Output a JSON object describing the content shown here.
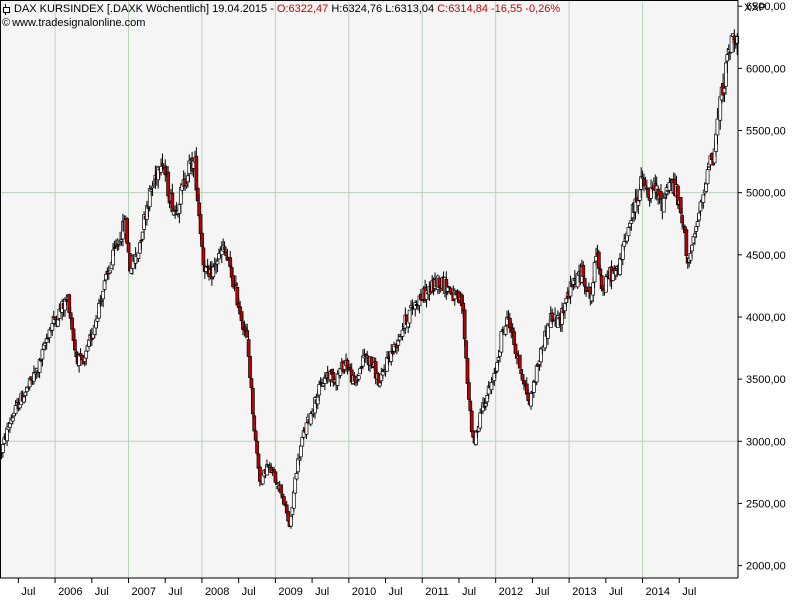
{
  "header": {
    "name": "DAX KURSINDEX [.DAXK  Wöchentlich]",
    "date": "19.04.2015",
    "sep": " - ",
    "open": "O:6322,47",
    "high": "H:6324,76",
    "low": "L:6313,04",
    "close": "C:6314,84",
    "change": "-16,55",
    "change_pct": "-0,26%",
    "copyright_symbol": "©",
    "website": "www.tradesignalonline.com"
  },
  "y_unit": "XXP",
  "colors": {
    "background": "#f5f5f5",
    "grid": "#b9d2b9",
    "candle_up": "#ffffff",
    "candle_down": "#c00000",
    "candle_outline": "#000000",
    "header_red": "#d40000"
  },
  "chart_data": {
    "type": "candlestick",
    "title": "DAX KURSINDEX [.DAXK  Wöchentlich]",
    "frequency": "weekly",
    "ylim": [
      1900,
      6550
    ],
    "y_ticks": [
      2000,
      2500,
      3000,
      3500,
      4000,
      4500,
      5000,
      5500,
      6000,
      6500
    ],
    "y_tick_labels": [
      "2000,00",
      "2500,00",
      "3000,00",
      "3500,00",
      "4000,00",
      "4500,00",
      "5000,00",
      "5500,00",
      "6000,00",
      "6500,00"
    ],
    "x_range": [
      2005.25,
      2015.3
    ],
    "x_ticks": [
      {
        "label": "Jul",
        "x": 2005.5
      },
      {
        "label": "2006",
        "x": 2006.0
      },
      {
        "label": "Jul",
        "x": 2006.5
      },
      {
        "label": "2007",
        "x": 2007.0
      },
      {
        "label": "Jul",
        "x": 2007.5
      },
      {
        "label": "2008",
        "x": 2008.0
      },
      {
        "label": "Jul",
        "x": 2008.5
      },
      {
        "label": "2009",
        "x": 2009.0
      },
      {
        "label": "Jul",
        "x": 2009.5
      },
      {
        "label": "2010",
        "x": 2010.0
      },
      {
        "label": "Jul",
        "x": 2010.5
      },
      {
        "label": "2011",
        "x": 2011.0
      },
      {
        "label": "Jul",
        "x": 2011.5
      },
      {
        "label": "2012",
        "x": 2012.0
      },
      {
        "label": "Jul",
        "x": 2012.5
      },
      {
        "label": "2013",
        "x": 2013.0
      },
      {
        "label": "Jul",
        "x": 2013.5
      },
      {
        "label": "2014",
        "x": 2014.0
      },
      {
        "label": "Jul",
        "x": 2014.5
      }
    ],
    "grid_x": [
      2006.0,
      2007.0,
      2008.0,
      2009.0,
      2010.0,
      2011.0,
      2012.0,
      2013.0,
      2014.0
    ],
    "grid_y": [
      3000,
      5000
    ],
    "price_path": [
      [
        2005.27,
        2920
      ],
      [
        2005.38,
        3150
      ],
      [
        2005.5,
        3300
      ],
      [
        2005.62,
        3420
      ],
      [
        2005.78,
        3600
      ],
      [
        2005.92,
        3900
      ],
      [
        2006.02,
        4000
      ],
      [
        2006.12,
        4100
      ],
      [
        2006.18,
        4150
      ],
      [
        2006.28,
        3700
      ],
      [
        2006.38,
        3600
      ],
      [
        2006.5,
        3850
      ],
      [
        2006.62,
        4150
      ],
      [
        2006.75,
        4400
      ],
      [
        2006.88,
        4650
      ],
      [
        2006.96,
        4750
      ],
      [
        2007.02,
        4400
      ],
      [
        2007.12,
        4500
      ],
      [
        2007.25,
        4900
      ],
      [
        2007.35,
        5100
      ],
      [
        2007.45,
        5300
      ],
      [
        2007.55,
        5000
      ],
      [
        2007.63,
        4850
      ],
      [
        2007.72,
        5000
      ],
      [
        2007.82,
        5200
      ],
      [
        2007.9,
        5250
      ],
      [
        2007.96,
        4850
      ],
      [
        2008.02,
        4450
      ],
      [
        2008.1,
        4300
      ],
      [
        2008.2,
        4450
      ],
      [
        2008.3,
        4550
      ],
      [
        2008.42,
        4300
      ],
      [
        2008.5,
        4100
      ],
      [
        2008.62,
        3800
      ],
      [
        2008.72,
        3050
      ],
      [
        2008.8,
        2650
      ],
      [
        2008.88,
        2800
      ],
      [
        2008.96,
        2750
      ],
      [
        2009.08,
        2600
      ],
      [
        2009.2,
        2300
      ],
      [
        2009.28,
        2750
      ],
      [
        2009.38,
        3050
      ],
      [
        2009.5,
        3250
      ],
      [
        2009.62,
        3450
      ],
      [
        2009.72,
        3550
      ],
      [
        2009.82,
        3500
      ],
      [
        2009.96,
        3650
      ],
      [
        2010.08,
        3450
      ],
      [
        2010.22,
        3700
      ],
      [
        2010.34,
        3600
      ],
      [
        2010.42,
        3450
      ],
      [
        2010.52,
        3650
      ],
      [
        2010.62,
        3750
      ],
      [
        2010.72,
        3900
      ],
      [
        2010.84,
        4050
      ],
      [
        2010.96,
        4150
      ],
      [
        2011.08,
        4200
      ],
      [
        2011.22,
        4300
      ],
      [
        2011.34,
        4250
      ],
      [
        2011.45,
        4150
      ],
      [
        2011.55,
        4100
      ],
      [
        2011.62,
        3450
      ],
      [
        2011.7,
        2950
      ],
      [
        2011.8,
        3250
      ],
      [
        2011.9,
        3400
      ],
      [
        2011.98,
        3500
      ],
      [
        2012.08,
        3850
      ],
      [
        2012.18,
        4000
      ],
      [
        2012.28,
        3700
      ],
      [
        2012.38,
        3500
      ],
      [
        2012.46,
        3300
      ],
      [
        2012.55,
        3550
      ],
      [
        2012.65,
        3800
      ],
      [
        2012.75,
        4000
      ],
      [
        2012.86,
        3950
      ],
      [
        2012.96,
        4150
      ],
      [
        2013.08,
        4300
      ],
      [
        2013.18,
        4350
      ],
      [
        2013.3,
        4150
      ],
      [
        2013.38,
        4550
      ],
      [
        2013.46,
        4200
      ],
      [
        2013.55,
        4350
      ],
      [
        2013.65,
        4350
      ],
      [
        2013.72,
        4500
      ],
      [
        2013.82,
        4750
      ],
      [
        2013.92,
        4950
      ],
      [
        2014.0,
        5100
      ],
      [
        2014.08,
        4950
      ],
      [
        2014.16,
        5050
      ],
      [
        2014.26,
        4900
      ],
      [
        2014.36,
        5100
      ],
      [
        2014.46,
        5000
      ],
      [
        2014.56,
        4700
      ],
      [
        2014.62,
        4450
      ],
      [
        2014.7,
        4600
      ],
      [
        2014.76,
        4800
      ],
      [
        2014.84,
        5000
      ],
      [
        2014.9,
        5300
      ],
      [
        2014.96,
        5250
      ],
      [
        2015.02,
        5550
      ],
      [
        2015.08,
        5800
      ],
      [
        2015.14,
        6000
      ],
      [
        2015.2,
        6200
      ],
      [
        2015.25,
        6250
      ],
      [
        2015.29,
        6315
      ]
    ]
  }
}
